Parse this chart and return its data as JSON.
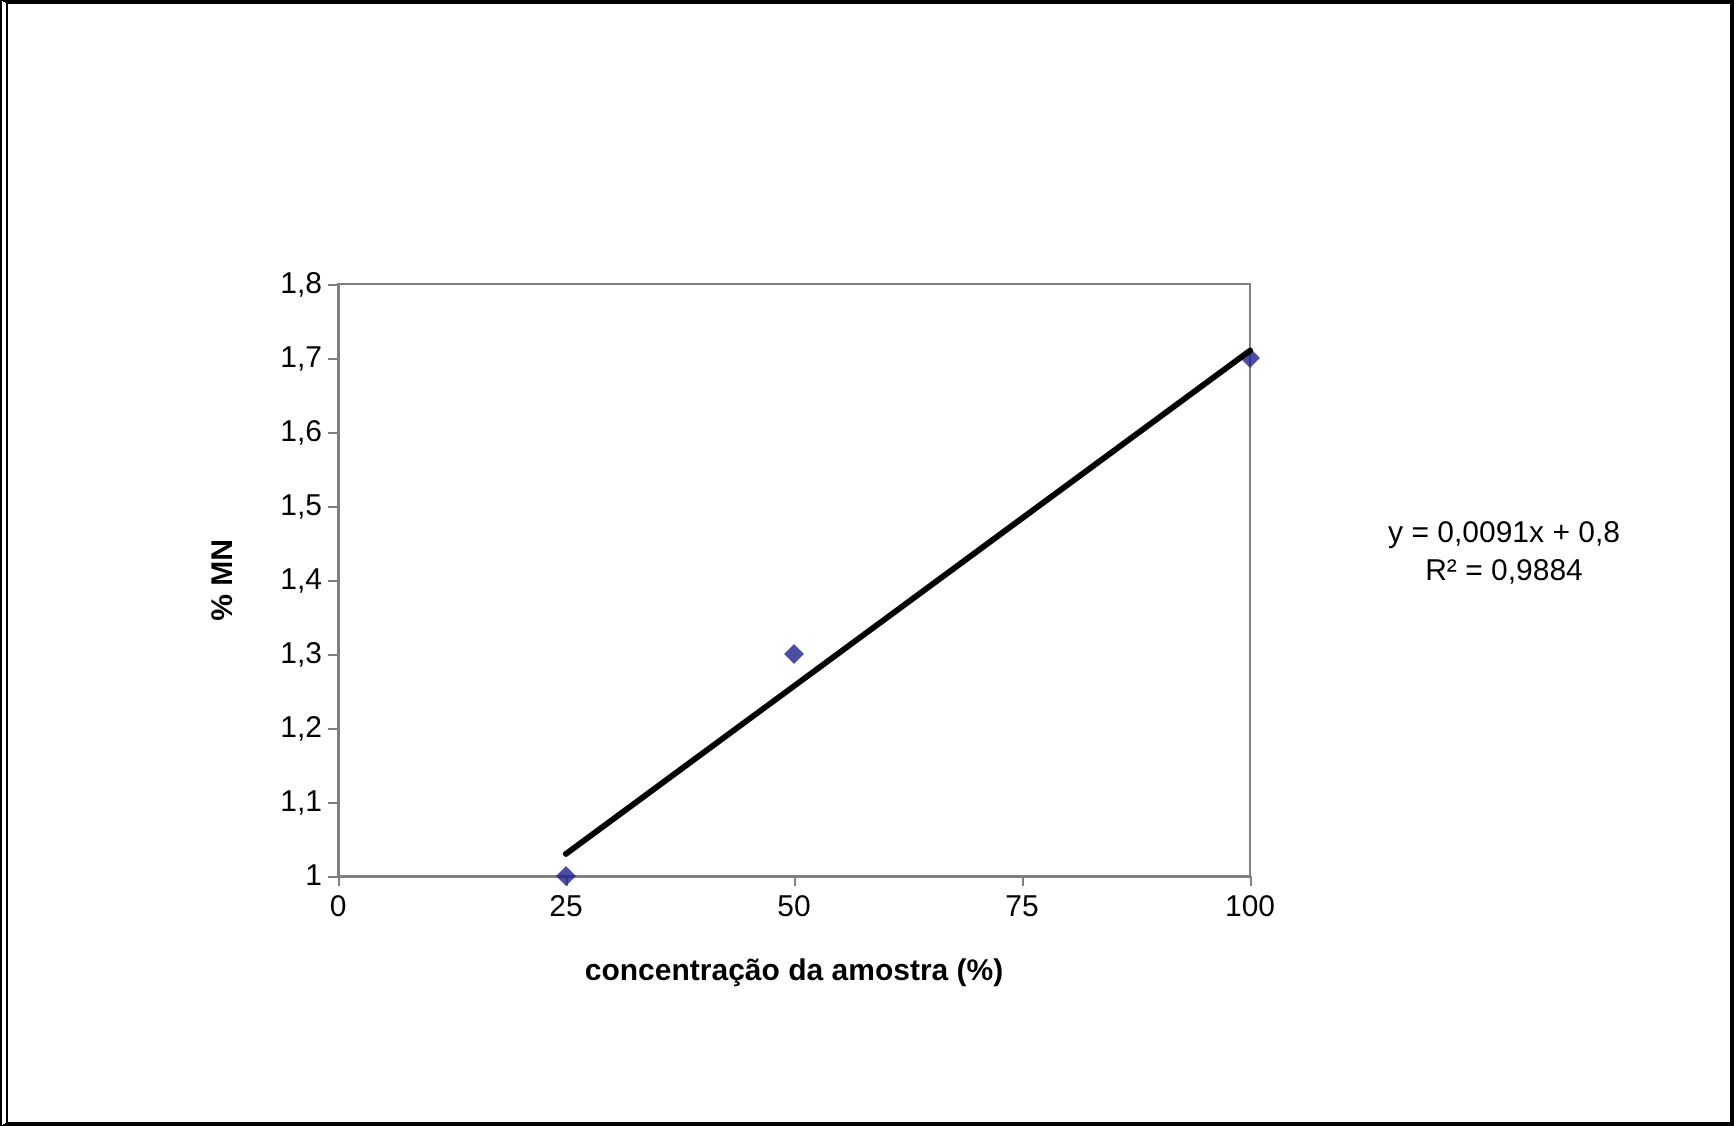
{
  "chart_data": {
    "type": "scatter",
    "xlabel": "concentração da amostra (%)",
    "ylabel": "% MN",
    "x": [
      25,
      50,
      100
    ],
    "series": [
      {
        "color": "#1f1f8f",
        "marker": "diamond",
        "values": [
          1.0,
          1.3,
          1.7
        ]
      },
      {
        "type": "line",
        "color": "#000000",
        "marker": "none",
        "x": [
          25,
          100
        ],
        "values": [
          1.03,
          1.71
        ]
      }
    ],
    "xlim": [
      0,
      100
    ],
    "xticks": [
      0,
      25,
      50,
      75,
      100
    ],
    "ylim": [
      1,
      1.8
    ],
    "yticks": [
      {
        "value": 1,
        "label": "1"
      },
      {
        "value": 1.1,
        "label": "1,1"
      },
      {
        "value": 1.2,
        "label": "1,2"
      },
      {
        "value": 1.3,
        "label": "1,3"
      },
      {
        "value": 1.4,
        "label": "1,4"
      },
      {
        "value": 1.5,
        "label": "1,5"
      },
      {
        "value": 1.6,
        "label": "1,6"
      },
      {
        "value": 1.7,
        "label": "1,7"
      },
      {
        "value": 1.8,
        "label": "1,8"
      }
    ],
    "annotations": [
      "y = 0,0091x + 0,8",
      "R² = 0,9884"
    ],
    "grid": false
  }
}
